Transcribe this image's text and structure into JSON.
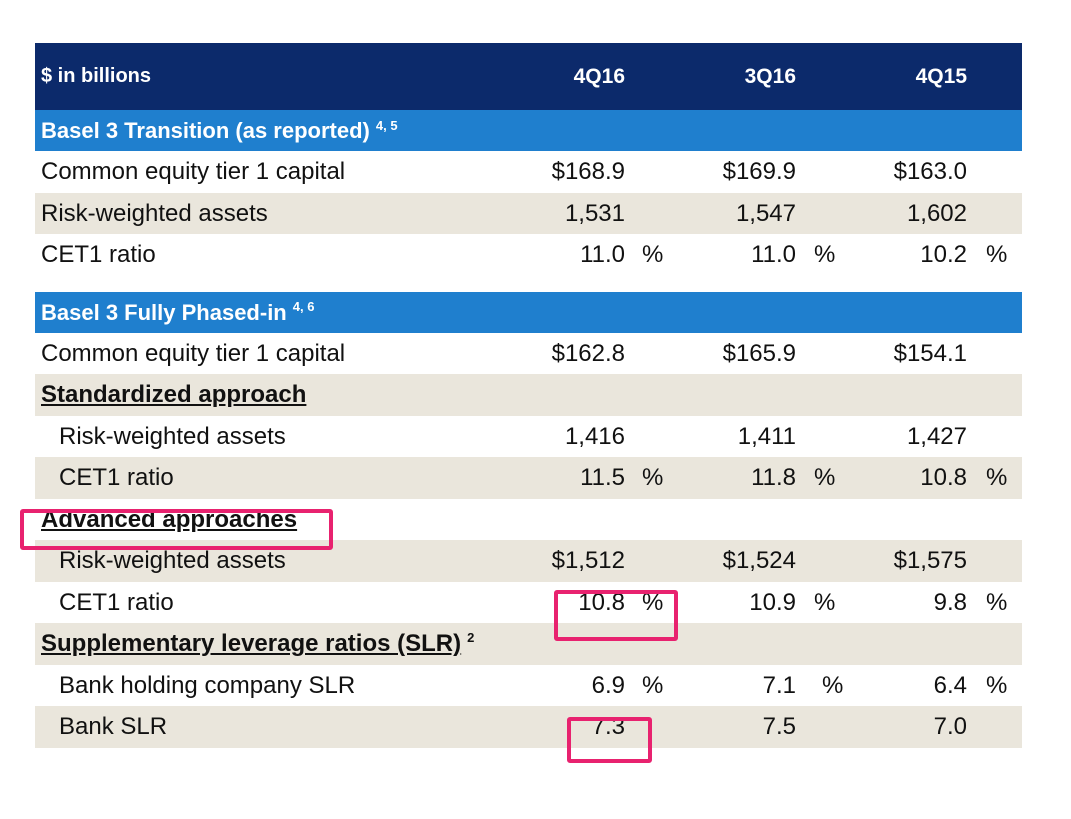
{
  "header": {
    "units": "$ in billions",
    "col1": "4Q16",
    "col2": "3Q16",
    "col3": "4Q15"
  },
  "transition": {
    "title": "Basel 3 Transition (as reported)",
    "footnote": "4, 5",
    "cet1_capital": {
      "label": "Common equity tier 1 capital",
      "v1": "$168.9",
      "v2": "$169.9",
      "v3": "$163.0"
    },
    "rwa": {
      "label": "Risk-weighted assets",
      "v1": "1,531",
      "v2": "1,547",
      "v3": "1,602"
    },
    "cet1_ratio": {
      "label": "CET1 ratio",
      "v1": "11.0",
      "v2": "11.0",
      "v3": "10.2",
      "unit": "%"
    }
  },
  "phased": {
    "title": "Basel 3 Fully Phased-in",
    "footnote": "4, 6",
    "cet1_capital": {
      "label": "Common equity tier 1 capital",
      "v1": "$162.8",
      "v2": "$165.9",
      "v3": "$154.1"
    },
    "standardized": {
      "title": "Standardized approach",
      "rwa": {
        "label": "Risk-weighted assets",
        "v1": "1,416",
        "v2": "1,411",
        "v3": "1,427"
      },
      "cet1_ratio": {
        "label": "CET1 ratio",
        "v1": "11.5",
        "v2": "11.8",
        "v3": "10.8",
        "unit": "%"
      }
    },
    "advanced": {
      "title": "Advanced approaches",
      "rwa": {
        "label": "Risk-weighted assets",
        "v1": "$1,512",
        "v2": "$1,524",
        "v3": "$1,575"
      },
      "cet1_ratio": {
        "label": "CET1 ratio",
        "v1": "10.8",
        "v2": "10.9",
        "v3": "9.8",
        "unit": "%"
      }
    }
  },
  "slr": {
    "title": "Supplementary leverage ratios (SLR)",
    "footnote": "2",
    "bhc": {
      "label": "Bank holding company SLR",
      "v1": "6.9",
      "v2": "7.1",
      "v3": "6.4",
      "unit": "%"
    },
    "bank": {
      "label": "Bank SLR",
      "v1": "7.3",
      "v2": "7.5",
      "v3": "7.0"
    }
  },
  "colors": {
    "header_bg": "#0c2a6b",
    "section_bg": "#1f7fce",
    "alt_row_bg": "#eae6dc",
    "highlight": "#e8226f"
  }
}
